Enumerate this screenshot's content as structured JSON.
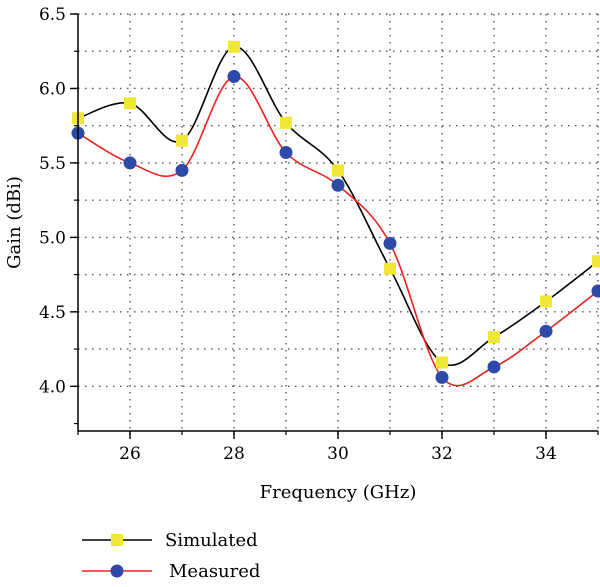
{
  "chart_data": {
    "type": "line",
    "xlabel": "Frequency (GHz)",
    "ylabel": "Gain (dBi)",
    "xlim": [
      25,
      35
    ],
    "ylim": [
      3.7,
      6.5
    ],
    "x_ticks": [
      26,
      28,
      30,
      32,
      34
    ],
    "y_ticks": [
      4.0,
      4.5,
      5.0,
      5.5,
      6.0,
      6.5
    ],
    "x": [
      25,
      26,
      27,
      28,
      29,
      30,
      31,
      32,
      33,
      34,
      35
    ],
    "grid": true,
    "legend_position": "bottom-left",
    "series": [
      {
        "name": "Simulated",
        "values": [
          5.8,
          5.9,
          5.65,
          6.28,
          5.77,
          5.45,
          4.79,
          4.16,
          4.33,
          4.57,
          4.84
        ],
        "line_color": "#000000",
        "marker": "square",
        "marker_color": "#f0e635"
      },
      {
        "name": "Measured",
        "values": [
          5.7,
          5.5,
          5.45,
          6.08,
          5.57,
          5.35,
          4.96,
          4.06,
          4.13,
          4.37,
          4.64
        ],
        "line_color": "#e8231f",
        "marker": "circle",
        "marker_color": "#2e4aa8"
      }
    ]
  }
}
